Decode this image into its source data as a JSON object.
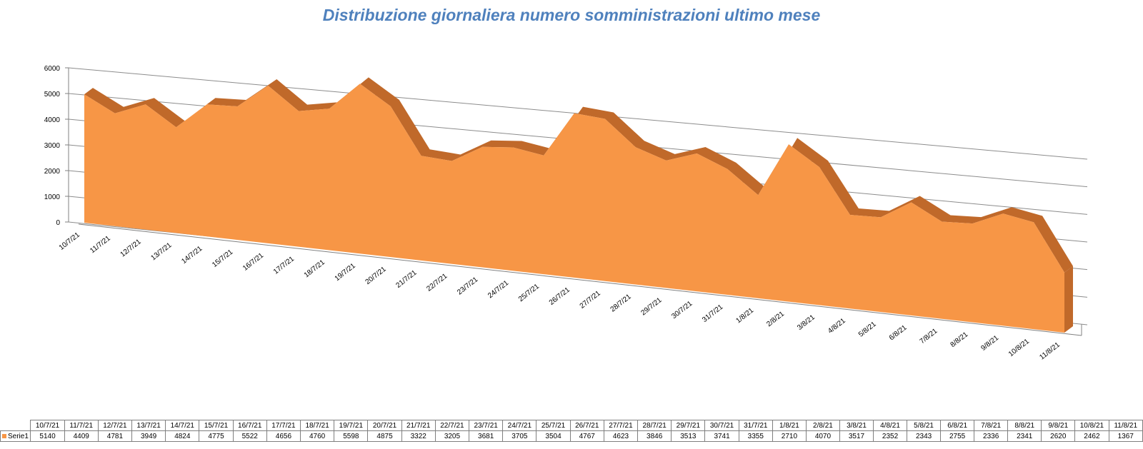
{
  "chart_data": {
    "type": "area",
    "title": "Distribuzione giornaliera numero somministrazioni ultimo mese",
    "categories": [
      "10/7/21",
      "11/7/21",
      "12/7/21",
      "13/7/21",
      "14/7/21",
      "15/7/21",
      "16/7/21",
      "17/7/21",
      "18/7/21",
      "19/7/21",
      "20/7/21",
      "21/7/21",
      "22/7/21",
      "23/7/21",
      "24/7/21",
      "25/7/21",
      "26/7/21",
      "27/7/21",
      "28/7/21",
      "29/7/21",
      "30/7/21",
      "31/7/21",
      "1/8/21",
      "2/8/21",
      "3/8/21",
      "4/8/21",
      "5/8/21",
      "6/8/21",
      "7/8/21",
      "8/8/21",
      "9/8/21",
      "10/8/21",
      "11/8/21"
    ],
    "series": [
      {
        "name": "Serie1",
        "values": [
          5140,
          4409,
          4781,
          3949,
          4824,
          4775,
          5522,
          4656,
          4760,
          5598,
          4875,
          3322,
          3205,
          3681,
          3705,
          3504,
          4767,
          4623,
          3846,
          3513,
          3741,
          3355,
          2710,
          4070,
          3517,
          2352,
          2343,
          2755,
          2336,
          2341,
          2620,
          2462,
          1367
        ]
      }
    ],
    "y_ticks": [
      "0",
      "1000",
      "2000",
      "3000",
      "4000",
      "5000",
      "6000"
    ],
    "ylim": [
      0,
      6000
    ],
    "grid": true,
    "color": "#f79646",
    "shadow_color": "#c0692a"
  }
}
